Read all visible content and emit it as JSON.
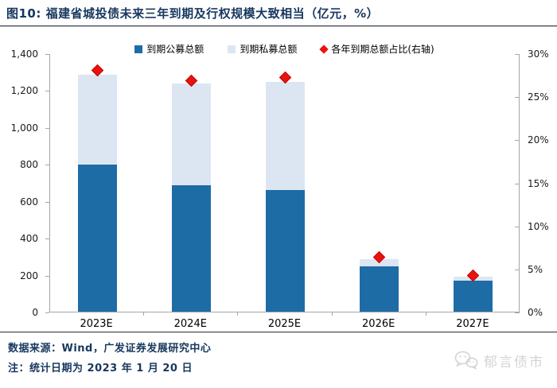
{
  "header": {
    "title": "图10: 福建省城投债未来三年到期及行权规模大致相当（亿元，%）"
  },
  "chart_data": {
    "type": "bar",
    "stacked": true,
    "title": "福建省城投债未来三年到期及行权规模大致相当（亿元，%）",
    "categories": [
      "2023E",
      "2024E",
      "2025E",
      "2026E",
      "2027E"
    ],
    "series": [
      {
        "name": "到期公募总额",
        "type": "bar",
        "axis": "left",
        "color": "#1e6ca6",
        "values": [
          795,
          685,
          660,
          245,
          170
        ]
      },
      {
        "name": "到期私募总额",
        "type": "bar",
        "axis": "left",
        "color": "#dce6f2",
        "values": [
          490,
          550,
          585,
          40,
          20
        ]
      },
      {
        "name": "各年到期总额占比(右轴)",
        "type": "scatter",
        "marker": "diamond",
        "axis": "right",
        "color": "#e8120f",
        "values": [
          28.0,
          26.8,
          27.2,
          6.3,
          4.2
        ]
      }
    ],
    "stack_totals": [
      1285,
      1235,
      1245,
      285,
      190
    ],
    "left_axis": {
      "min": 0,
      "max": 1400,
      "step": 200,
      "tick_labels": [
        "1,400",
        "1,200",
        "1,000",
        "800",
        "600",
        "400",
        "200",
        "0"
      ]
    },
    "right_axis": {
      "min": 0,
      "max": 30,
      "step": 5,
      "tick_labels": [
        "30%",
        "25%",
        "20%",
        "15%",
        "10%",
        "5%",
        "0%"
      ]
    },
    "legend_position": "top",
    "grid": false,
    "axis_color": "#a6a6a6"
  },
  "footer": {
    "source": "数据来源：Wind，广发证券发展研究中心",
    "note": "注：统计日期为 2023 年 1 月 20 日"
  },
  "watermark": {
    "label": "郁言债市",
    "icon": "wechat-chat-bubbles"
  }
}
